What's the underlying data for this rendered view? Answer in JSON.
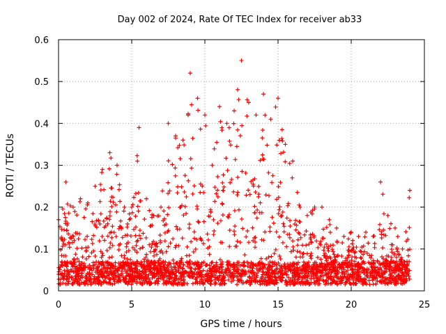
{
  "chart_data": {
    "type": "scatter",
    "title": "Day 002 of 2024, Rate Of TEC Index for receiver ab33",
    "xlabel": "GPS time / hours",
    "ylabel": "ROTI / TECUs",
    "xlim": [
      0,
      25
    ],
    "ylim": [
      0,
      0.6
    ],
    "x_ticks": [
      "0",
      "5",
      "10",
      "15",
      "20",
      "25"
    ],
    "y_ticks": [
      "0",
      "0.1",
      "0.2",
      "0.3",
      "0.4",
      "0.5",
      "0.6"
    ],
    "grid": true,
    "marker": "+",
    "color": "#ff0000",
    "series": [
      {
        "name": "ROTI",
        "envelope_hours": [
          0,
          0.5,
          1,
          1.5,
          2,
          2.5,
          3,
          3.5,
          4,
          4.5,
          5,
          5.5,
          6,
          6.5,
          7,
          7.5,
          8,
          8.5,
          9,
          9.5,
          10,
          10.5,
          11,
          11.5,
          12,
          12.5,
          13,
          13.5,
          14,
          14.5,
          15,
          15.5,
          16,
          16.5,
          17,
          17.5,
          18,
          18.5,
          19,
          19.5,
          20,
          20.5,
          21,
          21.5,
          22,
          22.5,
          23,
          23.5,
          24
        ],
        "envelope_max": [
          0.17,
          0.26,
          0.2,
          0.22,
          0.21,
          0.25,
          0.29,
          0.33,
          0.3,
          0.2,
          0.2,
          0.39,
          0.22,
          0.18,
          0.2,
          0.4,
          0.37,
          0.36,
          0.52,
          0.46,
          0.42,
          0.3,
          0.44,
          0.4,
          0.43,
          0.55,
          0.45,
          0.42,
          0.47,
          0.41,
          0.46,
          0.35,
          0.31,
          0.2,
          0.18,
          0.2,
          0.2,
          0.17,
          0.15,
          0.13,
          0.14,
          0.13,
          0.14,
          0.13,
          0.26,
          0.18,
          0.15,
          0.1,
          0.24
        ],
        "typical_low": 0.015,
        "typical_mid": 0.07
      }
    ]
  }
}
